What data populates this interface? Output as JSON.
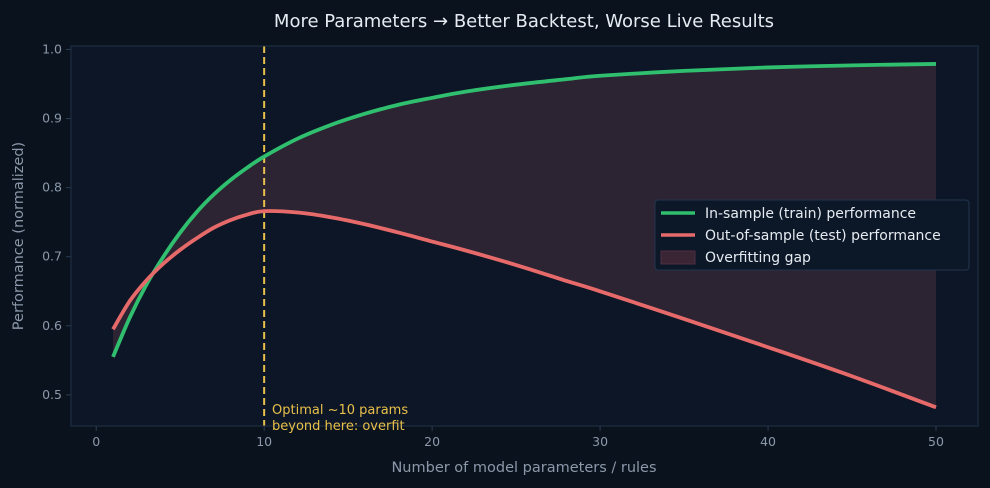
{
  "chart_data": {
    "type": "line",
    "title": "More Parameters → Better Backtest, Worse Live Results",
    "xlabel": "Number of model parameters / rules",
    "ylabel": "Performance (normalized)",
    "xlim": [
      -1.5,
      52.5
    ],
    "ylim": [
      0.455,
      1.005
    ],
    "xticks": [
      0,
      10,
      20,
      30,
      40,
      50
    ],
    "yticks": [
      0.5,
      0.6,
      0.7,
      0.8,
      0.9,
      1.0
    ],
    "x": [
      1,
      2,
      3,
      4,
      5,
      6,
      7,
      8,
      9,
      10,
      12,
      14,
      16,
      18,
      20,
      22,
      25,
      28,
      30,
      35,
      40,
      45,
      50
    ],
    "series": [
      {
        "name": "In-sample (train) performance",
        "color": "#2fbf6e",
        "values": [
          0.555,
          0.612,
          0.66,
          0.7,
          0.735,
          0.765,
          0.79,
          0.811,
          0.829,
          0.845,
          0.871,
          0.891,
          0.907,
          0.92,
          0.93,
          0.939,
          0.949,
          0.957,
          0.962,
          0.969,
          0.974,
          0.977,
          0.979
        ]
      },
      {
        "name": "Out-of-sample (test) performance",
        "color": "#e66a6a",
        "values": [
          0.595,
          0.636,
          0.666,
          0.69,
          0.71,
          0.727,
          0.742,
          0.753,
          0.761,
          0.766,
          0.764,
          0.757,
          0.747,
          0.735,
          0.722,
          0.709,
          0.688,
          0.665,
          0.65,
          0.61,
          0.569,
          0.527,
          0.482
        ]
      }
    ],
    "fill_between": {
      "name": "Overfitting gap",
      "color": "#d36a7c"
    },
    "vline": {
      "x": 10,
      "color": "#e8c04a",
      "style": "dashed"
    },
    "annotation": {
      "lines": [
        "Optimal ~10 params",
        "beyond here: overfit"
      ],
      "x": 10,
      "y": 0.455,
      "color": "#e8c04a"
    },
    "legend_position": "center-right",
    "grid": false,
    "colors": {
      "background": "#0a121e",
      "plot_area": "#0d1626",
      "frame": "#1e3146",
      "tick_text": "#8b98a9",
      "title_text": "#e6ebf1"
    }
  }
}
